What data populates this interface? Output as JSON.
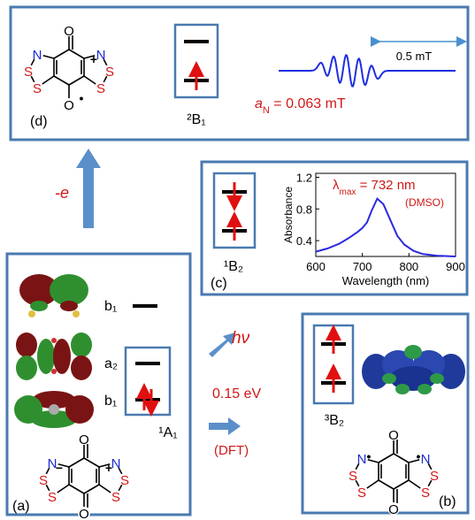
{
  "chart_data": {
    "type": "line",
    "x_label": "Wavelength (nm)",
    "y_label": "Absorbance",
    "annotation": {
      "symbol": "λ",
      "subscript": "max",
      "text": " = 732 nm"
    },
    "note": "(DMSO)",
    "x": [
      600,
      625,
      650,
      670,
      690,
      700,
      710,
      720,
      732,
      745,
      760,
      775,
      790,
      810,
      830,
      860,
      900
    ],
    "values": [
      0.26,
      0.3,
      0.36,
      0.43,
      0.51,
      0.56,
      0.63,
      0.78,
      0.93,
      0.86,
      0.66,
      0.46,
      0.35,
      0.27,
      0.23,
      0.21,
      0.2
    ],
    "color": "#2a2ae0",
    "xlim": [
      600,
      900
    ],
    "ylim": [
      0.2,
      1.25
    ],
    "xticks": [
      600,
      700,
      800,
      900
    ],
    "yticks": [
      0.4,
      0.8,
      1.2
    ]
  },
  "panels": {
    "d": {
      "label": "(d)",
      "state": "²B₁",
      "epr": {
        "symbol": "a",
        "subscript": "N",
        "text": " = 0.063 mT"
      },
      "scale": "0.5 mT",
      "molecule": {
        "atoms": [
          "O",
          "N",
          "S",
          "S",
          "N",
          "S",
          "S",
          "O"
        ],
        "marks": [
          "+",
          "•"
        ]
      }
    },
    "c": {
      "label": "(c)",
      "state": "¹B₂"
    },
    "a": {
      "label": "(a)",
      "state": "¹A₁",
      "orbitals": [
        "b₁",
        "a₂",
        "b₁"
      ],
      "molecule": {
        "atoms": [
          "O",
          "N",
          "S",
          "S",
          "N",
          "S",
          "S",
          "O"
        ],
        "marks": [
          "−",
          "+"
        ]
      }
    },
    "b": {
      "label": "(b)",
      "state": "³B₂",
      "molecule": {
        "atoms": [
          "O",
          "N",
          "S",
          "S",
          "N",
          "S",
          "S",
          "O"
        ],
        "marks": [
          "•",
          "•"
        ]
      }
    }
  },
  "arrows": {
    "oxidation": "-e",
    "photo": "hν",
    "gap": "0.15 eV",
    "method": "(DFT)"
  }
}
